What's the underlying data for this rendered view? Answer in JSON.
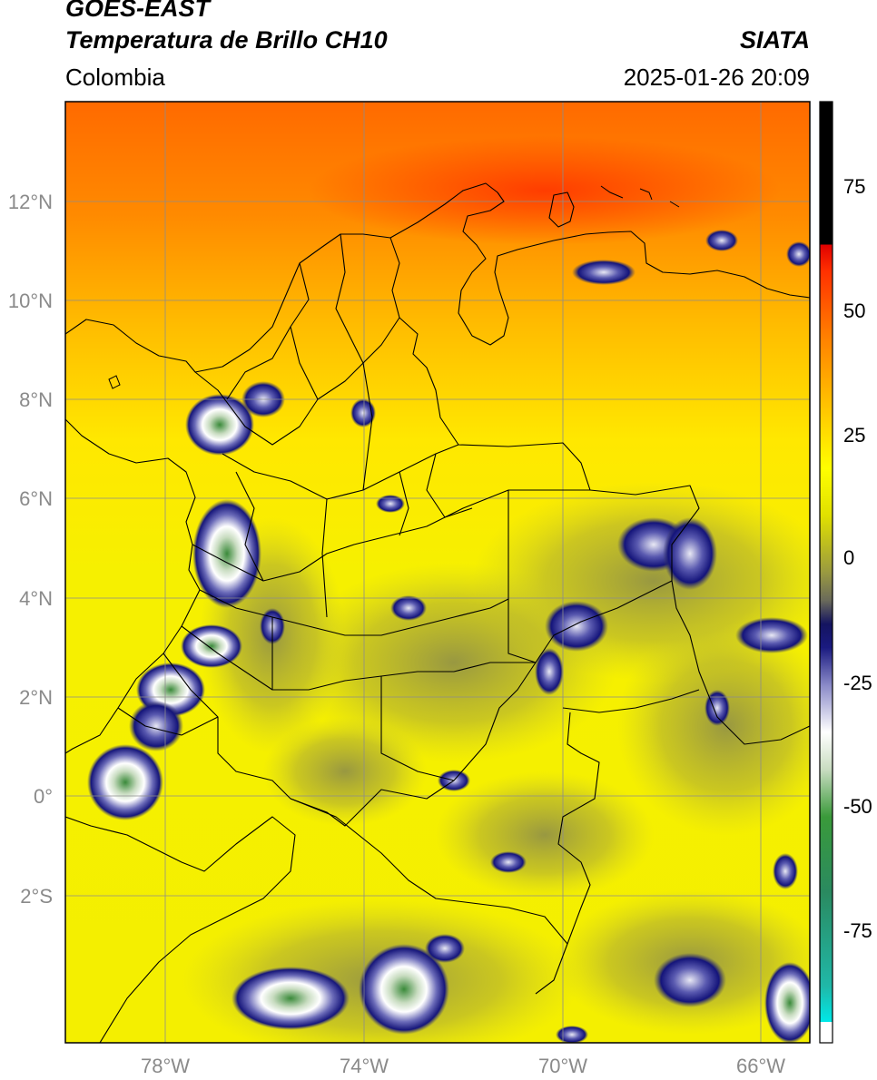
{
  "header": {
    "satellite": "GOES-EAST",
    "product": "Temperatura de Brillo CH10",
    "region": "Colombia",
    "source": "SIATA",
    "datetime": "2025-01-26 20:09"
  },
  "map": {
    "lon_ticks": [
      "78°W",
      "74°W",
      "70°W",
      "66°W"
    ],
    "lat_ticks": [
      "12°N",
      "10°N",
      "8°N",
      "6°N",
      "4°N",
      "2°N",
      "0°",
      "2°S"
    ],
    "colors": {
      "tick_label": "#8a8a8a",
      "grid": "#8c8c8c",
      "border": "#000000"
    }
  },
  "colorbar": {
    "ticks": [
      "75",
      "50",
      "25",
      "0",
      "-25",
      "-50",
      "-75"
    ],
    "colors": {
      "black": "#000000",
      "red": "#e00000",
      "orange": "#ff8c00",
      "yellow": "#ffff00",
      "olive": "#8c8c3c",
      "navy": "#141478",
      "white": "#ffffff",
      "green": "#2a8a2a",
      "teal": "#20b0a0",
      "cyan": "#00e8e8"
    }
  }
}
